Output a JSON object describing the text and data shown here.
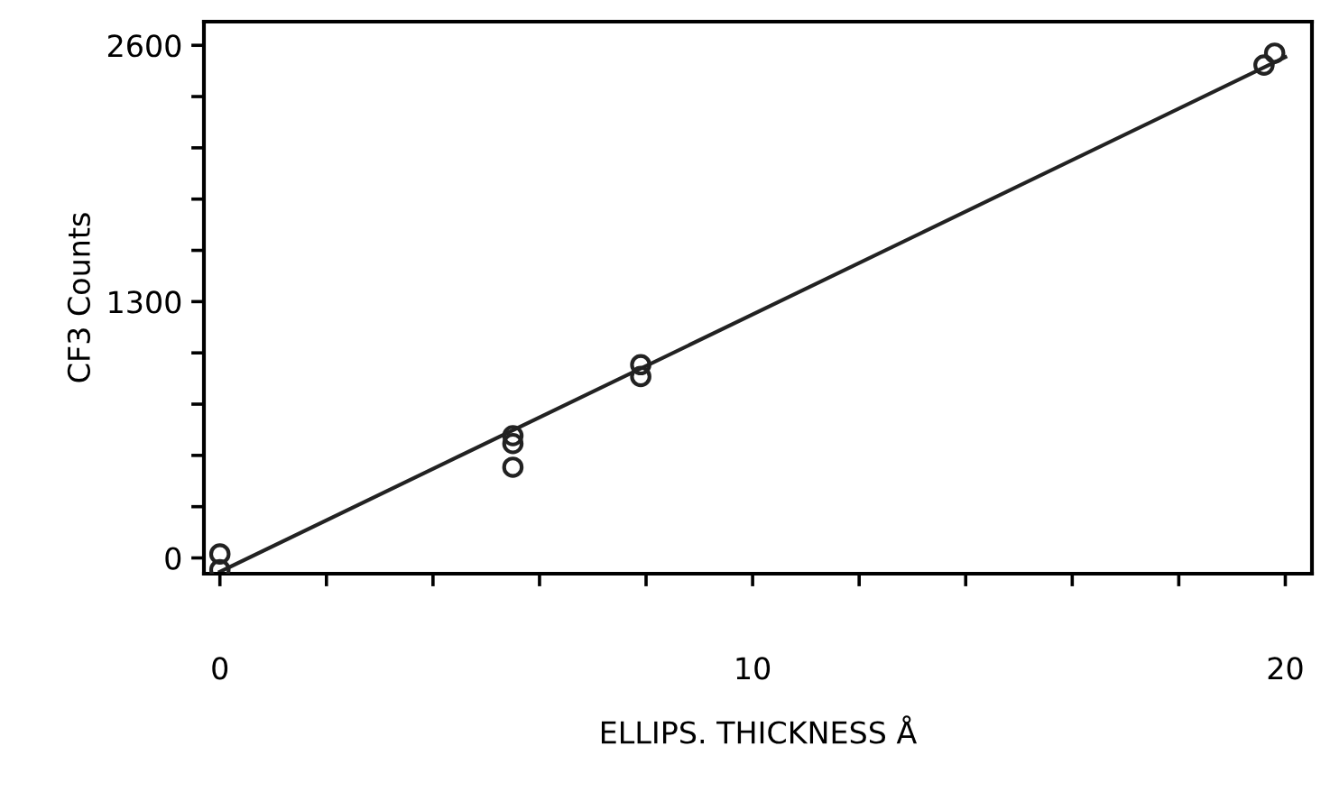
{
  "chart_data": {
    "type": "scatter",
    "xlabel": "ELLIPS. THICKNESS Å",
    "ylabel": "CF3 Counts",
    "xlim": [
      -0.3,
      20.5
    ],
    "ylim": [
      -80,
      2720
    ],
    "xticks": [
      0,
      {
        "value": 2,
        "label": null
      },
      {
        "value": 4,
        "label": null
      },
      {
        "value": 6,
        "label": null
      },
      {
        "value": 8,
        "label": null
      },
      10,
      {
        "value": 12,
        "label": null
      },
      {
        "value": 14,
        "label": null
      },
      {
        "value": 16,
        "label": null
      },
      {
        "value": 18,
        "label": null
      },
      20
    ],
    "yticks": [
      0,
      {
        "value": 260,
        "label": null
      },
      {
        "value": 520,
        "label": null
      },
      {
        "value": 780,
        "label": null
      },
      {
        "value": 1040,
        "label": null
      },
      1300,
      {
        "value": 1560,
        "label": null
      },
      {
        "value": 1820,
        "label": null
      },
      {
        "value": 2080,
        "label": null
      },
      {
        "value": 2340,
        "label": null
      },
      2600
    ],
    "grid": false,
    "marker": "circle",
    "series": [
      {
        "color": "#222222",
        "x": [
          0,
          0,
          5.5,
          5.5,
          5.5,
          7.9,
          7.9,
          19.6,
          19.8
        ],
        "values": [
          20,
          -60,
          620,
          580,
          460,
          980,
          920,
          2500,
          2560
        ]
      },
      {
        "type": "line",
        "color": "#222222",
        "marker": "none",
        "line_style": "solid",
        "x": [
          0,
          20
        ],
        "values": [
          -70,
          2540
        ]
      }
    ]
  }
}
